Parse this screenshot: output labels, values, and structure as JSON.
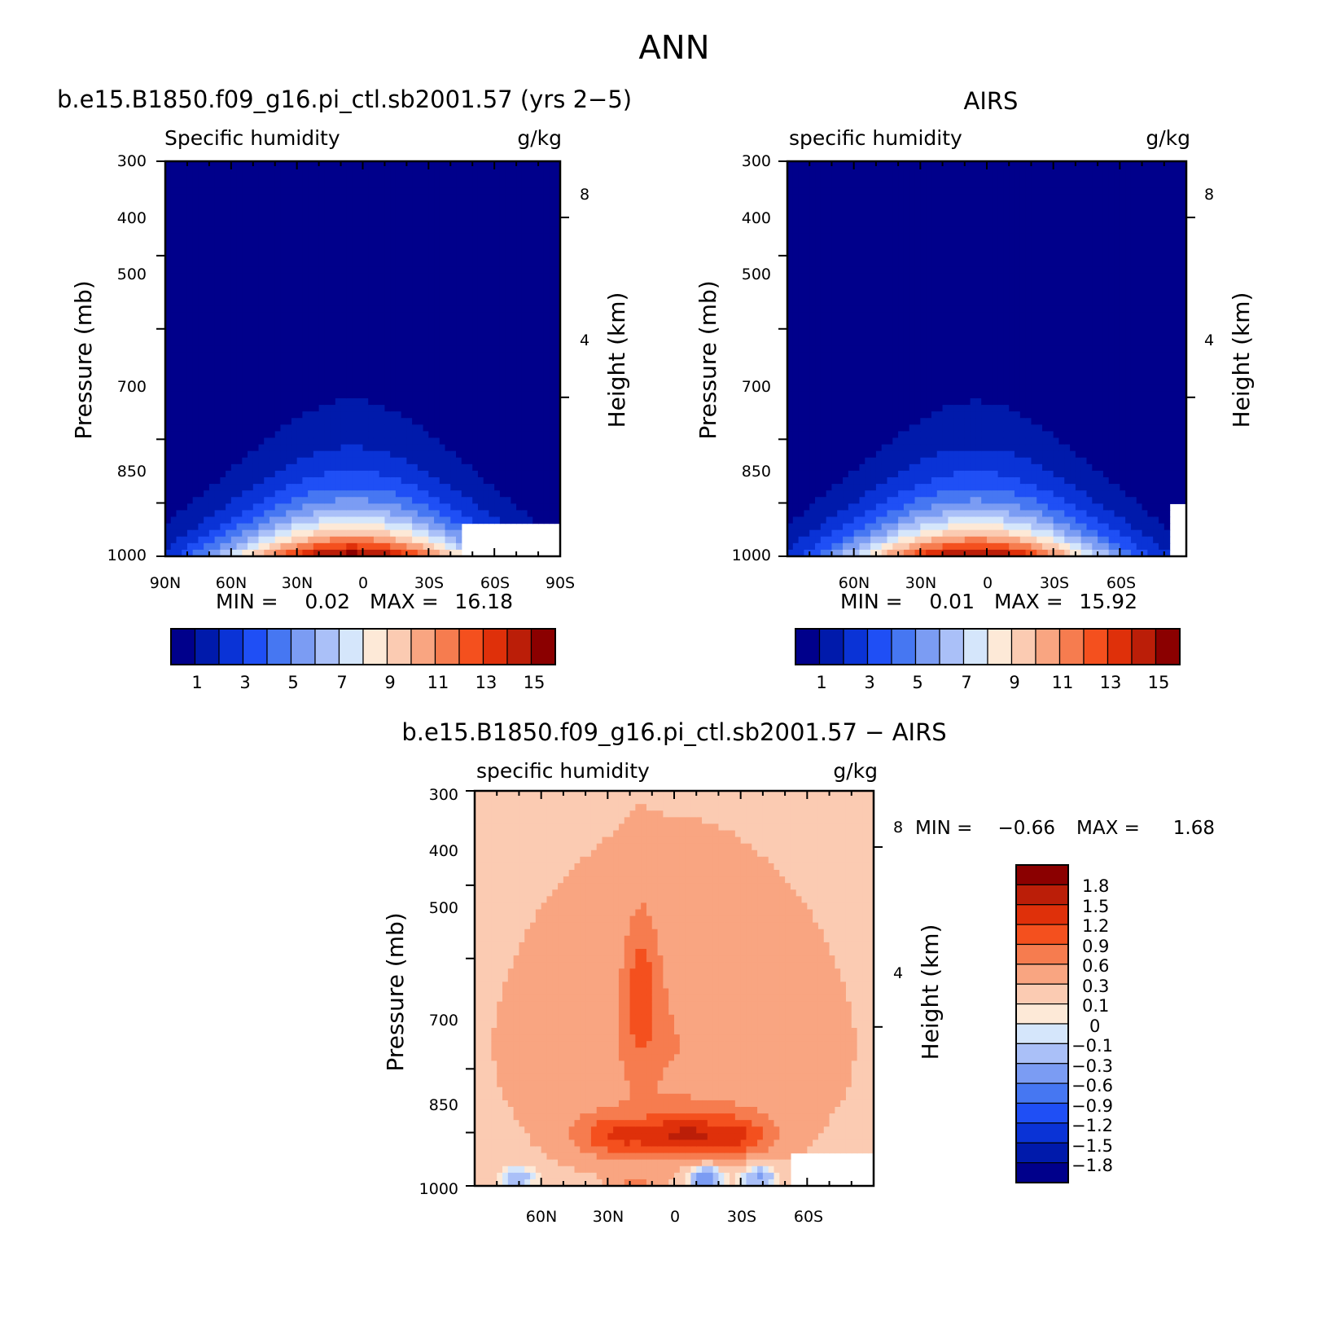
{
  "figure": {
    "title": "ANN"
  },
  "colormap": [
    "#00008b",
    "#001aab",
    "#0a33d6",
    "#1f4ff5",
    "#4677f2",
    "#7b9cf3",
    "#aac0f8",
    "#d5e6fb",
    "#fde9d7",
    "#fbcbb2",
    "#f9a581",
    "#f67c4f",
    "#f4501e",
    "#df300a",
    "#bb1e08",
    "#8b0000"
  ],
  "chart_data": [
    {
      "type": "heatmap",
      "title": "b.e15.B1850.f09_g16.pi_ctl.sb2001.57 (yrs 2−5)",
      "left_subtitle": "Specific humidity",
      "right_subtitle": "g/kg",
      "ylabel": "Pressure (mb)",
      "ylabel_right": "Height (km)",
      "xticks": [
        "90N",
        "60N",
        "30N",
        "0",
        "30S",
        "60S",
        "90S"
      ],
      "yticks": [
        "300",
        "400",
        "500",
        "700",
        "850",
        "1000"
      ],
      "yticks_right": [
        "8",
        "4"
      ],
      "ylim": [
        1000,
        300
      ],
      "xlim": [
        90,
        -90
      ],
      "min_label": "MIN =",
      "min": "0.02",
      "max_label": "MAX =",
      "max": "16.18",
      "colorbar_labels": [
        "1",
        "3",
        "5",
        "7",
        "9",
        "11",
        "13",
        "15"
      ],
      "levels": [
        1,
        2,
        3,
        4,
        5,
        6,
        7,
        8,
        9,
        10,
        11,
        12,
        13,
        14,
        15
      ],
      "peak_lat": 5,
      "peak_value": 16.18
    },
    {
      "type": "heatmap",
      "title": "AIRS",
      "left_subtitle": "specific humidity",
      "right_subtitle": "g/kg",
      "ylabel": "Pressure (mb)",
      "ylabel_right": "Height (km)",
      "xticks": [
        "60N",
        "30N",
        "0",
        "30S",
        "60S"
      ],
      "yticks": [
        "300",
        "400",
        "500",
        "700",
        "850",
        "1000"
      ],
      "yticks_right": [
        "8",
        "4"
      ],
      "ylim": [
        1000,
        300
      ],
      "xlim": [
        90,
        -90
      ],
      "min_label": "MIN =",
      "min": "0.01",
      "max_label": "MAX =",
      "max": "15.92",
      "colorbar_labels": [
        "1",
        "3",
        "5",
        "7",
        "9",
        "11",
        "13",
        "15"
      ],
      "levels": [
        1,
        2,
        3,
        4,
        5,
        6,
        7,
        8,
        9,
        10,
        11,
        12,
        13,
        14,
        15
      ],
      "peak_lat": 5,
      "peak_value": 15.92
    },
    {
      "type": "heatmap",
      "title": "b.e15.B1850.f09_g16.pi_ctl.sb2001.57 − AIRS",
      "left_subtitle": "specific humidity",
      "right_subtitle": "g/kg",
      "ylabel": "Pressure (mb)",
      "ylabel_right": "Height (km)",
      "xticks": [
        "60N",
        "30N",
        "0",
        "30S",
        "60S"
      ],
      "yticks": [
        "300",
        "400",
        "500",
        "700",
        "850",
        "1000"
      ],
      "yticks_right": [
        "8",
        "4"
      ],
      "ylim": [
        1000,
        300
      ],
      "xlim": [
        90,
        -90
      ],
      "min_label": "MIN =",
      "min": "−0.66",
      "max_label": "MAX =",
      "max": "1.68",
      "colorbar_labels": [
        "1.8",
        "1.5",
        "1.2",
        "0.9",
        "0.6",
        "0.3",
        "0.1",
        "0",
        "−0.1",
        "−0.3",
        "−0.6",
        "−0.9",
        "−1.2",
        "−1.5",
        "−1.8"
      ],
      "levels": [
        -1.8,
        -1.5,
        -1.2,
        -0.9,
        -0.6,
        -0.3,
        -0.1,
        0,
        0.1,
        0.3,
        0.6,
        0.9,
        1.2,
        1.5,
        1.8
      ]
    }
  ]
}
